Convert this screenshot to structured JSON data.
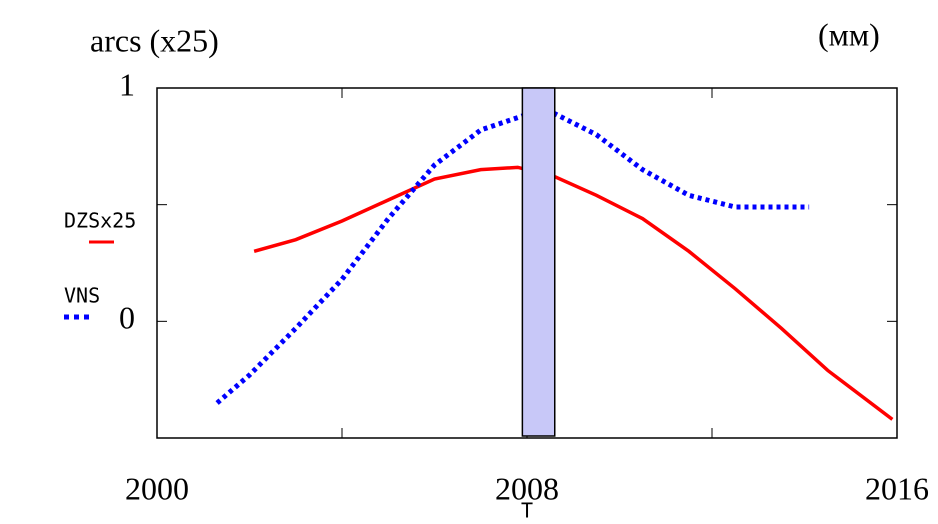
{
  "chart_data": {
    "type": "line",
    "y_label": "arcs (x25)",
    "unit_label": "(мм)",
    "x_label": "T",
    "xlim": [
      2000,
      2016
    ],
    "xticks": [
      2000,
      2008,
      2016
    ],
    "xminor": [
      2004,
      2012
    ],
    "ylim": [
      -0.5,
      1
    ],
    "yticks": [
      0,
      1
    ],
    "yminor": [
      0.5
    ],
    "highlight": {
      "range": [
        2007.9,
        2008.6
      ],
      "color": "#c8c8f8"
    },
    "series": [
      {
        "name": "DZSx25",
        "color": "#ff0000",
        "style": "solid",
        "x": [
          2002.1,
          2003,
          2004,
          2005,
          2006,
          2007,
          2007.8,
          2008.6,
          2009.5,
          2010.5,
          2011.5,
          2012.5,
          2013.5,
          2014.5,
          2015.9
        ],
        "values": [
          0.3,
          0.35,
          0.43,
          0.52,
          0.61,
          0.65,
          0.66,
          0.62,
          0.54,
          0.44,
          0.3,
          0.14,
          -0.03,
          -0.21,
          -0.42
        ]
      },
      {
        "name": "VNS",
        "color": "#0000ff",
        "style": "dotted",
        "x": [
          2001.3,
          2002,
          2003,
          2004,
          2005,
          2006,
          2007,
          2007.9,
          2008.6,
          2009.5,
          2010.5,
          2011.5,
          2012.5,
          2013.5,
          2014.1
        ],
        "values": [
          -0.35,
          -0.23,
          -0.03,
          0.18,
          0.44,
          0.67,
          0.82,
          0.88,
          0.89,
          0.8,
          0.65,
          0.54,
          0.49,
          0.49,
          0.49
        ]
      }
    ]
  }
}
